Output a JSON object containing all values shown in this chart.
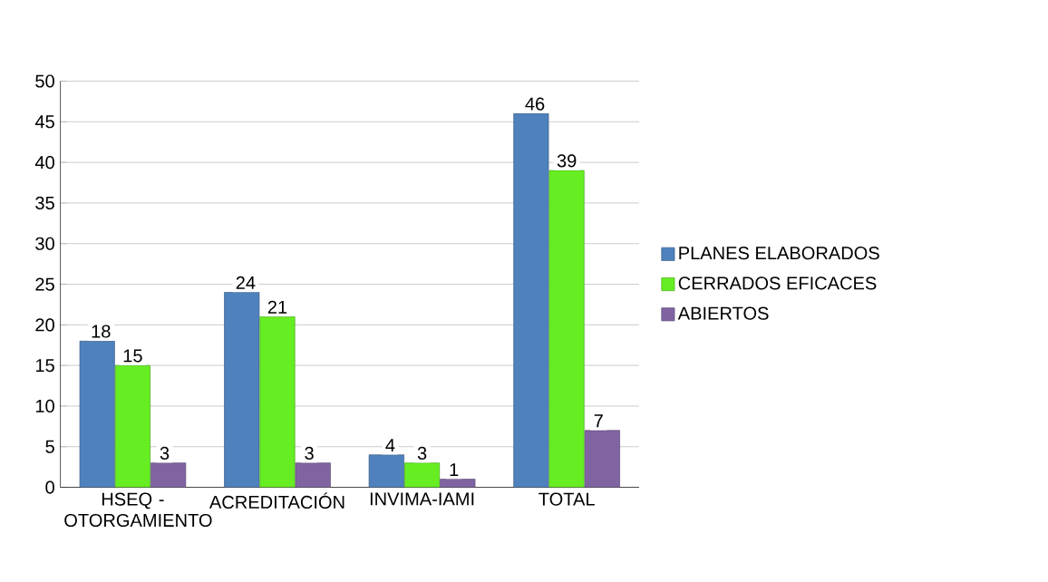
{
  "chart_data": {
    "type": "bar",
    "categories": [
      "HSEQ - OTORGAMIENTO",
      "ACREDITACIÓN",
      "INVIMA-IAMI",
      "TOTAL"
    ],
    "series": [
      {
        "name": "PLANES ELABORADOS",
        "color": "#4f81bd",
        "values": [
          18,
          24,
          4,
          46
        ]
      },
      {
        "name": "CERRADOS EFICACES",
        "color": "#66ee22",
        "values": [
          15,
          21,
          3,
          39
        ]
      },
      {
        "name": "ABIERTOS",
        "color": "#8064a2",
        "values": [
          3,
          3,
          1,
          7
        ]
      }
    ],
    "ylim": [
      0,
      50
    ],
    "yticks": [
      0,
      5,
      10,
      15,
      20,
      25,
      30,
      35,
      40,
      45,
      50
    ],
    "grid": "y",
    "legend": "right",
    "data_labels": true
  }
}
